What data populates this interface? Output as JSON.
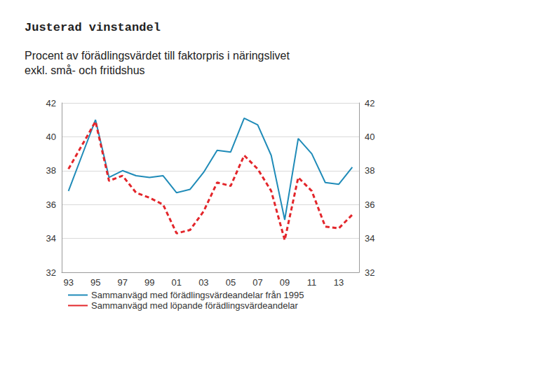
{
  "chart_data": {
    "type": "line",
    "title": "Justerad vinstandel",
    "subtitle": "Procent av förädlingsvärdet till faktorpris i näringslivet\nexkl. små- och fritidshus",
    "categories": [
      "93",
      null,
      "95",
      null,
      "97",
      null,
      "99",
      null,
      "01",
      null,
      "03",
      null,
      "05",
      null,
      "07",
      null,
      "09",
      null,
      "11",
      null,
      "13",
      null
    ],
    "series": [
      {
        "name": "Sammanvägd med förädlingsvärdeandelar från 1995",
        "color": "#1f8bb8",
        "line_style": "solid",
        "values": [
          36.8,
          38.9,
          41.0,
          37.6,
          38.0,
          37.7,
          37.6,
          37.7,
          36.7,
          36.9,
          37.9,
          39.2,
          39.1,
          41.1,
          40.7,
          38.9,
          35.1,
          39.9,
          39.0,
          37.3,
          37.2,
          38.2
        ]
      },
      {
        "name": "Sammanvägd med löpande förädlingsvärdeandelar",
        "color": "#e3262b",
        "line_style": "dashed",
        "values": [
          38.1,
          39.5,
          40.9,
          37.4,
          37.7,
          36.7,
          36.4,
          36.0,
          34.3,
          34.5,
          35.6,
          37.3,
          37.1,
          38.9,
          38.1,
          36.8,
          33.9,
          37.6,
          36.8,
          34.7,
          34.6,
          35.4
        ]
      }
    ],
    "ylim": [
      32,
      42
    ],
    "yticks": [
      32,
      34,
      36,
      38,
      40,
      42
    ],
    "y2lim": [
      32,
      42
    ],
    "y2ticks": [
      32,
      34,
      36,
      38,
      40,
      42
    ],
    "grid": true,
    "legend": "bottom-left"
  }
}
